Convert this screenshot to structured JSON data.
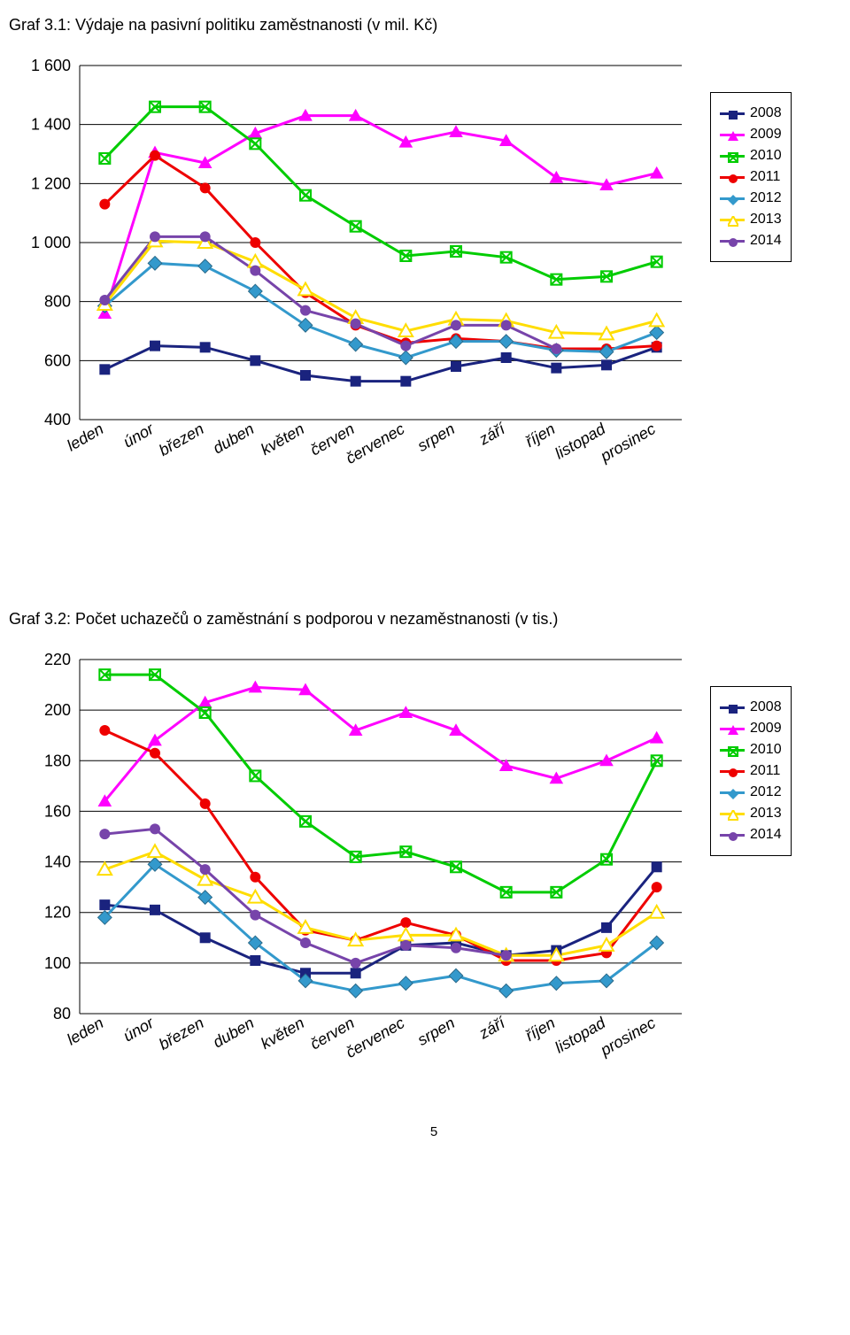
{
  "page_number": "5",
  "months": [
    "leden",
    "únor",
    "březen",
    "duben",
    "květen",
    "červen",
    "červenec",
    "srpen",
    "září",
    "říjen",
    "listopad",
    "prosinec"
  ],
  "legend_labels": [
    "2008",
    "2009",
    "2010",
    "2011",
    "2012",
    "2013",
    "2014"
  ],
  "series_colors": {
    "2008": "#1a237e",
    "2009": "#ff00ff",
    "2010": "#00cc00",
    "2011": "#ee0000",
    "2012": "#3399cc",
    "2013": "#ffdd00",
    "2014": "#7744aa"
  },
  "marker_shapes": {
    "2008": "square",
    "2009": "triangle",
    "2010": "xsquare",
    "2011": "circle",
    "2012": "diamond",
    "2013": "openTriangle",
    "2014": "circle"
  },
  "chart1": {
    "title": "Graf 3.1: Výdaje na pasivní politiku zaměstnanosti (v mil. Kč)",
    "ylim": [
      400,
      1600
    ],
    "ytick_step": 200,
    "yticks": [
      "400",
      "600",
      "800",
      "1 000",
      "1 200",
      "1 400",
      "1 600"
    ],
    "series": {
      "2008": [
        570,
        650,
        645,
        600,
        550,
        530,
        530,
        580,
        610,
        575,
        585,
        645
      ],
      "2009": [
        760,
        1305,
        1270,
        1370,
        1430,
        1430,
        1340,
        1375,
        1345,
        1220,
        1195,
        1235
      ],
      "2010": [
        1285,
        1460,
        1460,
        1335,
        1160,
        1055,
        955,
        970,
        950,
        875,
        885,
        935
      ],
      "2011": [
        1130,
        1295,
        1185,
        1000,
        830,
        720,
        660,
        675,
        665,
        640,
        640,
        650
      ],
      "2012": [
        785,
        930,
        920,
        835,
        720,
        655,
        610,
        665,
        665,
        635,
        630,
        695
      ],
      "2013": [
        790,
        1005,
        1000,
        935,
        840,
        745,
        700,
        740,
        735,
        695,
        690,
        735
      ],
      "2014": [
        805,
        1020,
        1020,
        905,
        770,
        725,
        650,
        720,
        720,
        640,
        null,
        null
      ]
    }
  },
  "chart2": {
    "title": "Graf 3.2: Počet uchazečů o zaměstnání s podporou v nezaměstnanosti (v tis.)",
    "ylim": [
      80,
      220
    ],
    "ytick_step": 20,
    "yticks": [
      "80",
      "100",
      "120",
      "140",
      "160",
      "180",
      "200",
      "220"
    ],
    "series": {
      "2008": [
        123,
        121,
        110,
        101,
        96,
        96,
        107,
        108,
        103,
        105,
        114,
        138
      ],
      "2009": [
        164,
        188,
        203,
        209,
        208,
        192,
        199,
        192,
        178,
        173,
        180,
        189
      ],
      "2010": [
        214,
        214,
        199,
        174,
        156,
        142,
        144,
        138,
        128,
        128,
        141,
        180
      ],
      "2011": [
        192,
        183,
        163,
        134,
        113,
        109,
        116,
        111,
        101,
        101,
        104,
        130
      ],
      "2012": [
        118,
        139,
        126,
        108,
        93,
        89,
        92,
        95,
        89,
        92,
        93,
        108
      ],
      "2013": [
        137,
        144,
        133,
        126,
        114,
        109,
        111,
        111,
        103,
        103,
        107,
        120
      ],
      "2014": [
        151,
        153,
        137,
        119,
        108,
        100,
        107,
        106,
        103,
        null,
        null,
        null
      ]
    }
  },
  "style": {
    "background_color": "#ffffff",
    "gridline_color": "#000000",
    "line_width": 3,
    "marker_size": 6,
    "axis_fontsize": 18,
    "legend_fontsize": 16,
    "title_fontsize": 18
  }
}
